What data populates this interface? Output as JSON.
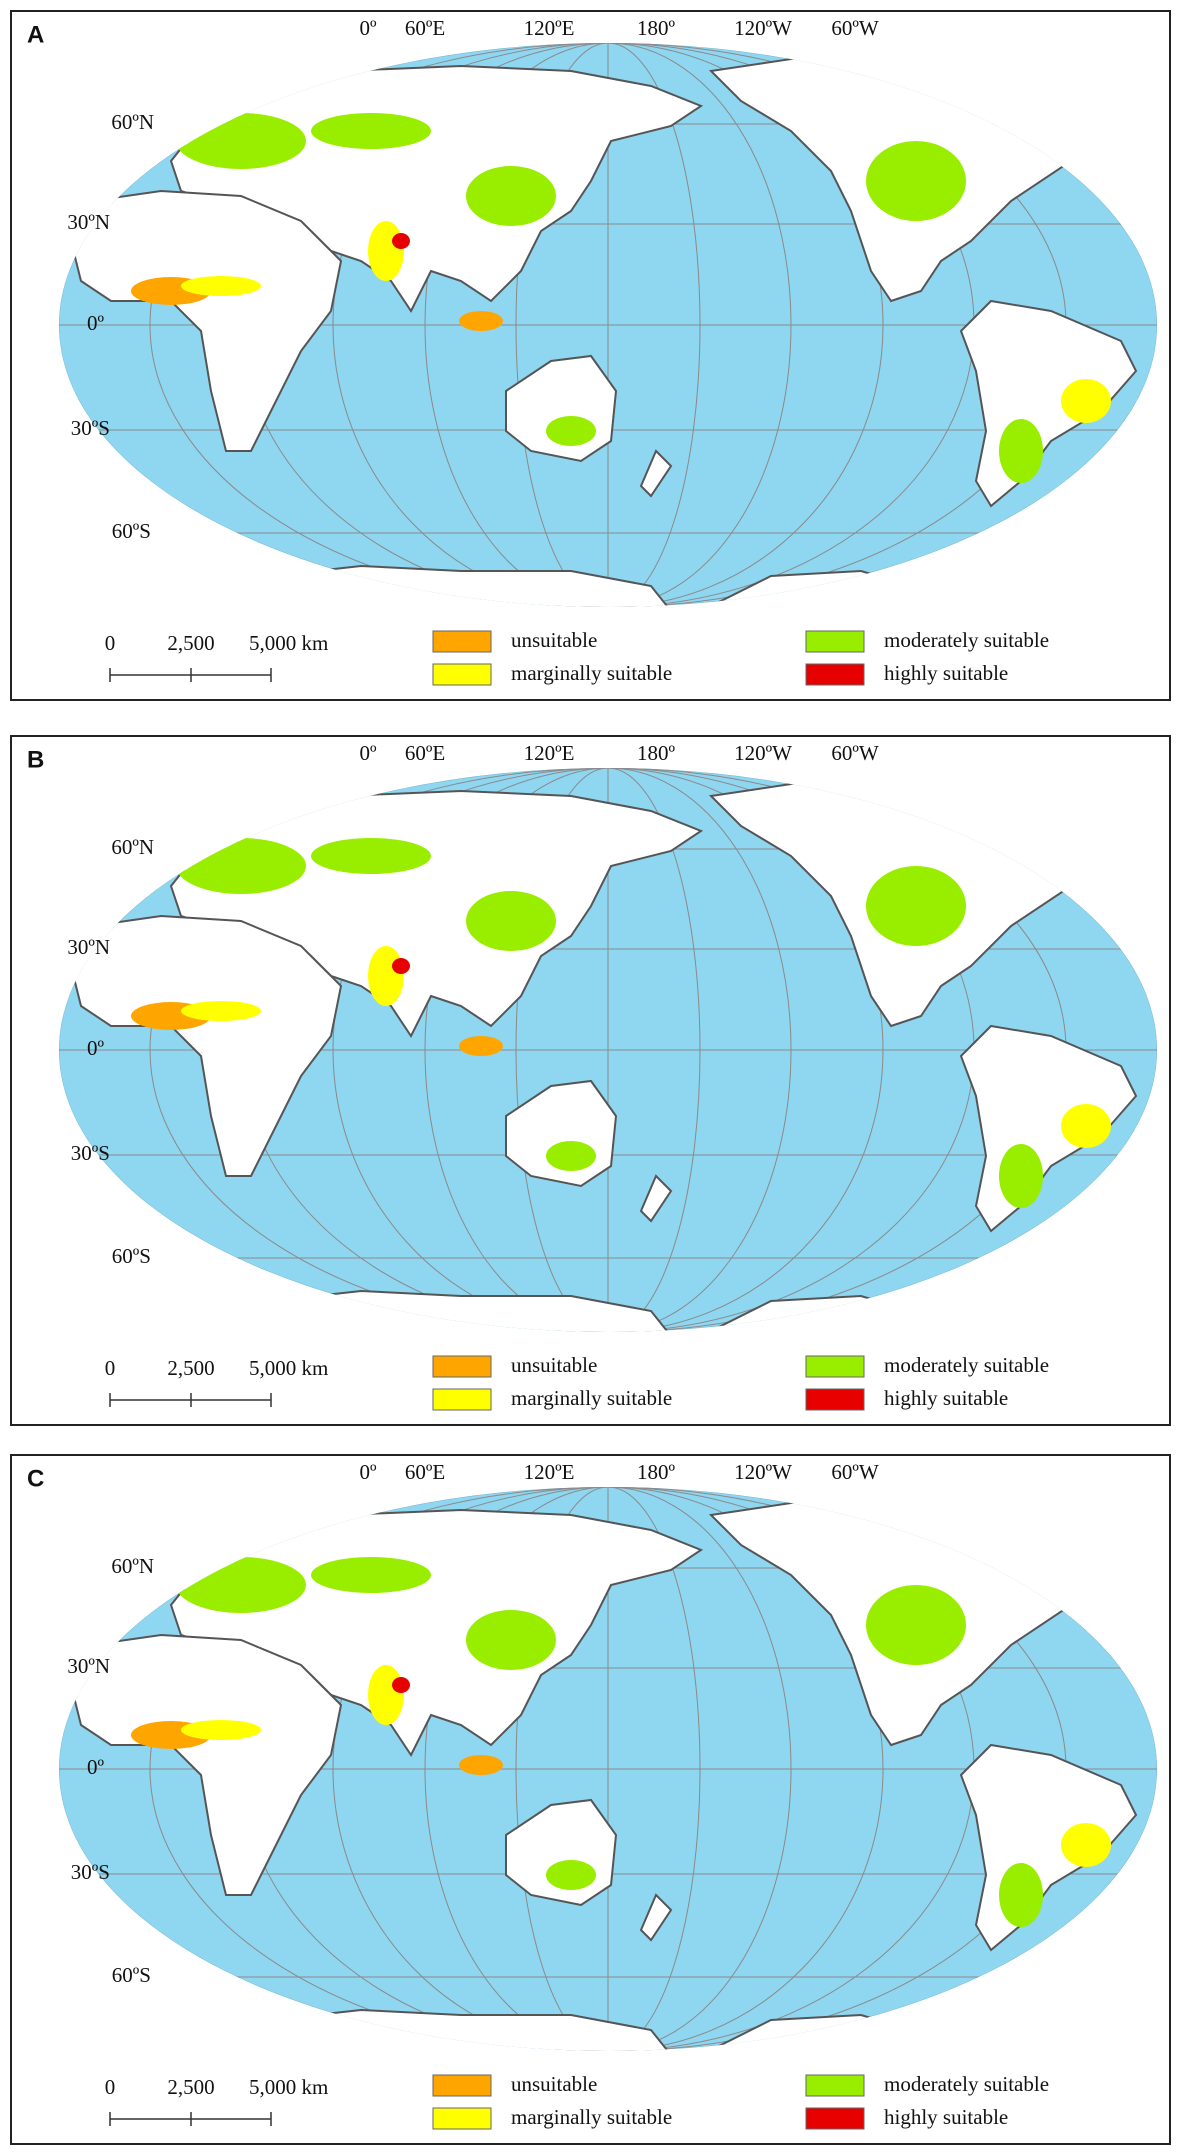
{
  "panels": [
    {
      "label": "A",
      "longitude_labels": [
        "0º",
        "60ºE",
        "120ºE",
        "180º",
        "120ºW",
        "60ºW"
      ],
      "latitude_labels": [
        "60ºN",
        "30ºN",
        "0º",
        "30ºS",
        "60ºS"
      ],
      "scale_labels": [
        "0",
        "2,500",
        "5,000 km"
      ],
      "legend": [
        {
          "label": "unsuitable",
          "color": "#ffa500"
        },
        {
          "label": "marginally suitable",
          "color": "#ffff00"
        },
        {
          "label": "moderately suitable",
          "color": "#99ee00"
        },
        {
          "label": "highly suitable",
          "color": "#e60000"
        }
      ]
    },
    {
      "label": "B",
      "longitude_labels": [
        "0º",
        "60ºE",
        "120ºE",
        "180º",
        "120ºW",
        "60ºW"
      ],
      "latitude_labels": [
        "60ºN",
        "30ºN",
        "0º",
        "30ºS",
        "60ºS"
      ],
      "scale_labels": [
        "0",
        "2,500",
        "5,000 km"
      ],
      "legend": [
        {
          "label": "unsuitable",
          "color": "#ffa500"
        },
        {
          "label": "marginally suitable",
          "color": "#ffff00"
        },
        {
          "label": "moderately suitable",
          "color": "#99ee00"
        },
        {
          "label": "highly suitable",
          "color": "#e60000"
        }
      ]
    },
    {
      "label": "C",
      "longitude_labels": [
        "0º",
        "60ºE",
        "120ºE",
        "180º",
        "120ºW",
        "60ºW"
      ],
      "latitude_labels": [
        "60ºN",
        "30ºN",
        "0º",
        "30ºS",
        "60ºS"
      ],
      "scale_labels": [
        "0",
        "2,500",
        "5,000 km"
      ],
      "legend": [
        {
          "label": "unsuitable",
          "color": "#ffa500"
        },
        {
          "label": "marginally suitable",
          "color": "#ffff00"
        },
        {
          "label": "moderately suitable",
          "color": "#99ee00"
        },
        {
          "label": "highly suitable",
          "color": "#e60000"
        }
      ]
    }
  ]
}
